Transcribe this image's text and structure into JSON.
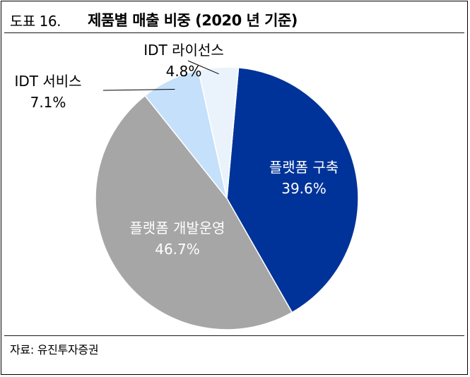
{
  "header": {
    "figure_label": "도표 16.",
    "title": "제품별 매출 비중 (2020 년 기준)"
  },
  "source": "자료: 유진투자증권",
  "chart_data": {
    "type": "pie",
    "title": "제품별 매출 비중 (2020 년 기준)",
    "unit": "%",
    "slices": [
      {
        "label": "플랫폼 구축",
        "value": 39.6,
        "value_label": "39.6%",
        "color": "#003399",
        "label_color": "#ffffff"
      },
      {
        "label": "플랫폼 개발운영",
        "value": 46.7,
        "value_label": "46.7%",
        "color": "#a6a6a6",
        "label_color": "#ffffff"
      },
      {
        "label": "IDT 서비스",
        "value": 7.1,
        "value_label": "7.1%",
        "color": "#c5e0fa",
        "label_color": "#000000"
      },
      {
        "label": "IDT 라이선스",
        "value": 4.8,
        "value_label": "4.8%",
        "color": "#eaf3fc",
        "label_color": "#000000"
      }
    ]
  }
}
